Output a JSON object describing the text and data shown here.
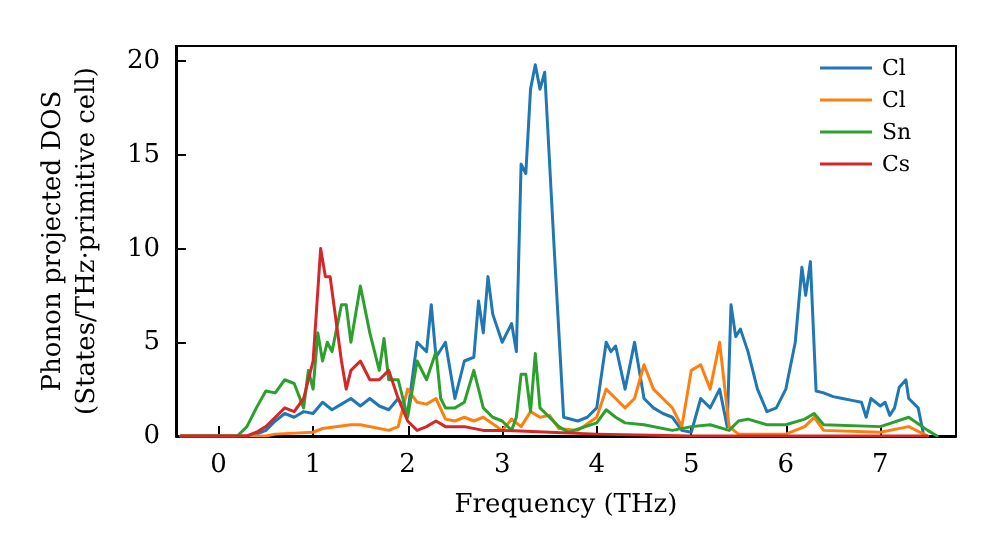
{
  "chart_data": {
    "type": "line",
    "xlabel": "Frequency (THz)",
    "ylabel": "Phonon projected DOS\n(States/THz·primitive cell)",
    "xlim": [
      -0.45,
      7.8
    ],
    "ylim": [
      0,
      20.8
    ],
    "xticks": [
      0,
      1,
      2,
      3,
      4,
      5,
      6,
      7
    ],
    "yticks": [
      0,
      5,
      10,
      15,
      20
    ],
    "grid": false,
    "legend": "top right",
    "marker": "none",
    "line_style": "solid",
    "series": [
      {
        "name": "Cl",
        "color": "#1f77b4",
        "x": [
          -0.4,
          0.3,
          0.4,
          0.5,
          0.6,
          0.7,
          0.8,
          0.9,
          1.0,
          1.1,
          1.2,
          1.3,
          1.4,
          1.5,
          1.6,
          1.7,
          1.8,
          1.9,
          2.0,
          2.1,
          2.2,
          2.25,
          2.3,
          2.4,
          2.5,
          2.6,
          2.7,
          2.75,
          2.8,
          2.85,
          2.9,
          3.0,
          3.1,
          3.15,
          3.2,
          3.25,
          3.3,
          3.35,
          3.4,
          3.45,
          3.55,
          3.65,
          3.8,
          3.9,
          4.0,
          4.1,
          4.15,
          4.2,
          4.3,
          4.4,
          4.5,
          4.6,
          4.7,
          4.8,
          4.9,
          5.0,
          5.1,
          5.2,
          5.3,
          5.38,
          5.42,
          5.47,
          5.52,
          5.6,
          5.7,
          5.8,
          5.9,
          6.0,
          6.1,
          6.17,
          6.21,
          6.26,
          6.32,
          6.4,
          6.5,
          6.6,
          6.7,
          6.8,
          6.85,
          6.9,
          7.0,
          7.05,
          7.1,
          7.15,
          7.2,
          7.27,
          7.3,
          7.4,
          7.46
        ],
        "values": [
          0,
          0,
          0.1,
          0.3,
          0.8,
          1.2,
          1.0,
          1.3,
          1.2,
          1.8,
          1.4,
          1.7,
          2.0,
          1.6,
          2.0,
          1.6,
          1.4,
          2.0,
          1.2,
          5.0,
          4.5,
          7.0,
          4.2,
          5.0,
          2.0,
          4.0,
          4.2,
          7.2,
          5.5,
          8.5,
          6.5,
          5.0,
          6.0,
          4.5,
          14.5,
          14.0,
          18.5,
          19.8,
          18.5,
          19.4,
          10.0,
          1.0,
          0.8,
          1.0,
          1.5,
          5.0,
          4.5,
          4.8,
          2.5,
          5.0,
          2.0,
          1.5,
          1.2,
          1.0,
          0.3,
          0.2,
          2.0,
          1.5,
          2.5,
          0.5,
          7.0,
          5.3,
          5.7,
          4.5,
          2.5,
          1.3,
          1.5,
          2.5,
          5.0,
          9.0,
          7.5,
          9.3,
          2.4,
          2.3,
          2.1,
          2.0,
          1.9,
          1.8,
          1.0,
          2.0,
          1.6,
          1.8,
          1.1,
          1.5,
          2.6,
          3.0,
          2.0,
          1.5,
          0
        ]
      },
      {
        "name": "Cl",
        "color": "#ff7f0e",
        "x": [
          -0.4,
          0.5,
          0.6,
          1.0,
          1.1,
          1.4,
          1.5,
          1.8,
          1.9,
          2.0,
          2.1,
          2.2,
          2.3,
          2.4,
          2.5,
          2.6,
          2.7,
          2.8,
          3.0,
          3.1,
          3.2,
          3.3,
          3.4,
          3.5,
          3.6,
          3.8,
          4.0,
          4.1,
          4.2,
          4.3,
          4.4,
          4.5,
          4.6,
          4.7,
          4.8,
          4.9,
          5.0,
          5.1,
          5.2,
          5.3,
          5.4,
          5.5,
          6.0,
          6.2,
          6.3,
          6.4,
          7.0,
          7.3,
          7.5
        ],
        "values": [
          0,
          0,
          0.1,
          0.2,
          0.4,
          0.6,
          0.6,
          0.3,
          0.5,
          2.5,
          1.8,
          1.7,
          2.0,
          0.9,
          0.8,
          1.0,
          0.8,
          1.0,
          0.3,
          0.9,
          0.5,
          1.3,
          1.0,
          1.1,
          0.4,
          0.3,
          1.0,
          2.5,
          2.0,
          1.5,
          2.0,
          3.8,
          2.5,
          2.0,
          1.5,
          0.5,
          3.5,
          3.8,
          2.5,
          5.0,
          0.5,
          0.1,
          0.1,
          0.5,
          1.0,
          0.3,
          0.2,
          0.5,
          0
        ]
      },
      {
        "name": "Sn",
        "color": "#2ca02c",
        "x": [
          -0.4,
          0.2,
          0.3,
          0.4,
          0.5,
          0.6,
          0.7,
          0.8,
          0.9,
          0.95,
          1.0,
          1.05,
          1.1,
          1.15,
          1.2,
          1.3,
          1.35,
          1.4,
          1.5,
          1.6,
          1.7,
          1.75,
          1.8,
          1.9,
          2.0,
          2.1,
          2.2,
          2.3,
          2.35,
          2.4,
          2.5,
          2.6,
          2.7,
          2.8,
          2.9,
          3.0,
          3.1,
          3.15,
          3.2,
          3.25,
          3.3,
          3.35,
          3.4,
          3.5,
          3.6,
          3.7,
          4.0,
          4.1,
          4.2,
          4.3,
          4.5,
          4.8,
          5.0,
          5.2,
          5.4,
          5.5,
          5.6,
          5.8,
          6.0,
          6.2,
          6.3,
          6.4,
          7.0,
          7.3,
          7.5,
          7.6
        ],
        "values": [
          0,
          0,
          0.5,
          1.5,
          2.4,
          2.3,
          3.0,
          2.8,
          1.5,
          3.5,
          2.5,
          5.5,
          4.0,
          5.0,
          4.5,
          7.0,
          7.0,
          5.0,
          8.0,
          5.5,
          3.5,
          5.2,
          3.0,
          3.0,
          1.0,
          4.0,
          3.0,
          4.5,
          2.0,
          1.5,
          1.5,
          1.8,
          3.5,
          1.5,
          1.0,
          0.8,
          0.3,
          1.0,
          3.3,
          3.3,
          1.3,
          4.4,
          1.5,
          1.0,
          0.5,
          0.2,
          0.7,
          1.4,
          1.0,
          0.7,
          0.6,
          0.3,
          0.5,
          0.6,
          0.3,
          0.8,
          0.9,
          0.6,
          0.6,
          0.9,
          1.2,
          0.6,
          0.5,
          1.0,
          0.3,
          0
        ]
      },
      {
        "name": "Cs",
        "color": "#d62728",
        "x": [
          -0.4,
          0.3,
          0.4,
          0.5,
          0.6,
          0.7,
          0.8,
          0.9,
          1.0,
          1.08,
          1.13,
          1.18,
          1.22,
          1.3,
          1.35,
          1.4,
          1.5,
          1.6,
          1.7,
          1.8,
          1.9,
          2.0,
          2.1,
          2.2,
          2.3,
          2.4,
          2.6,
          2.8,
          3.0,
          3.5,
          4.0,
          5.0,
          7.5
        ],
        "values": [
          0,
          0,
          0.2,
          0.5,
          1.0,
          1.5,
          1.3,
          2.0,
          4.0,
          10.0,
          8.5,
          8.5,
          7.0,
          4.0,
          2.5,
          3.5,
          4.0,
          3.0,
          3.0,
          3.5,
          2.0,
          0.8,
          0.3,
          0.5,
          0.8,
          0.5,
          0.5,
          0.3,
          0.3,
          0.2,
          0.1,
          0,
          0
        ]
      }
    ]
  }
}
